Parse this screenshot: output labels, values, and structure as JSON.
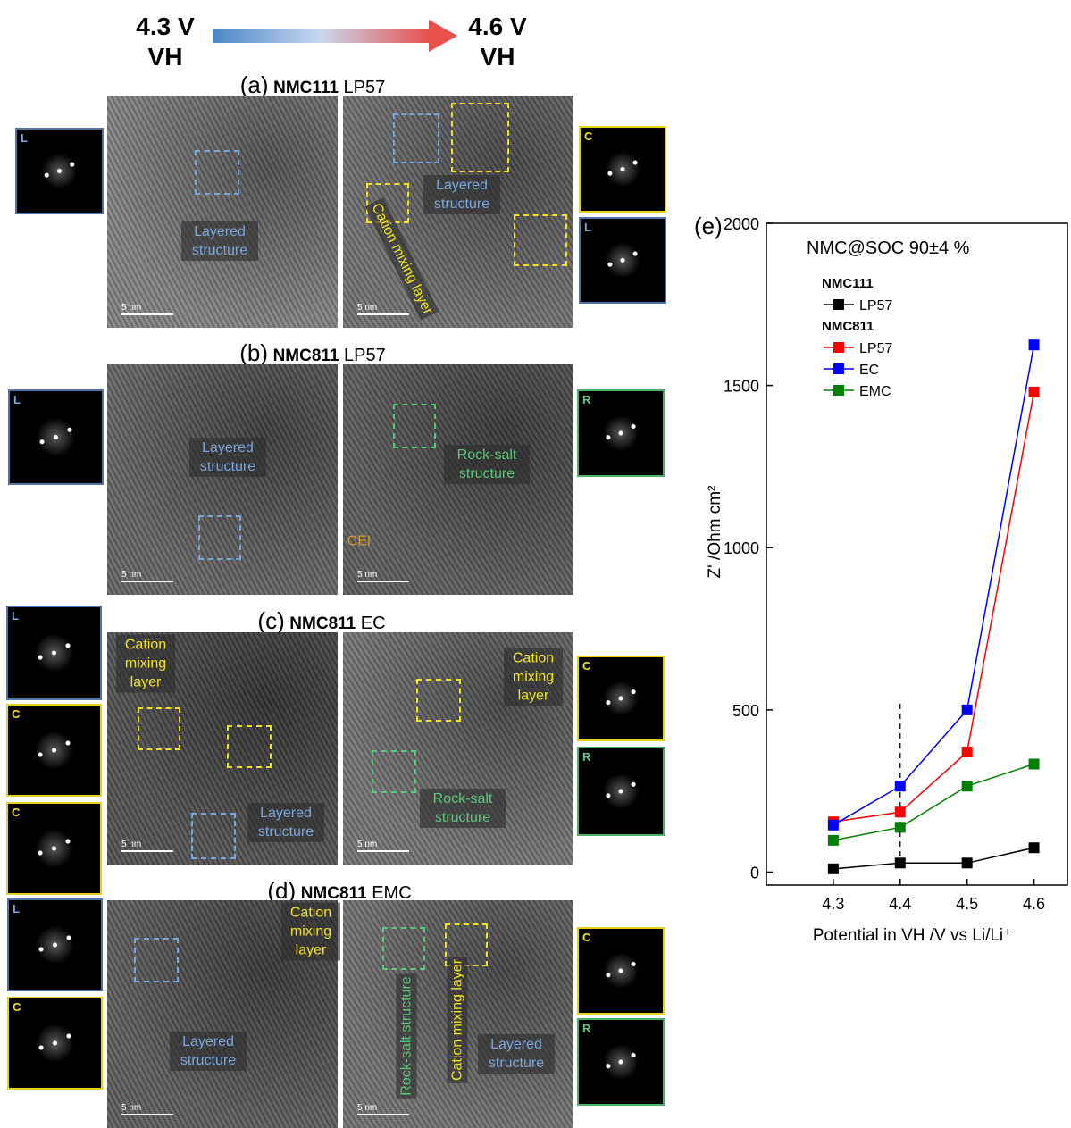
{
  "header": {
    "start_voltage": "4.3 V",
    "start_label": "VH",
    "end_voltage": "4.6 V",
    "end_label": "VH"
  },
  "panels": [
    {
      "label": "(a)",
      "material": "NMC111",
      "electrolyte": "LP57",
      "left_image": {
        "annotations": [
          "Layered structure"
        ],
        "scale_bar": "5 nm"
      },
      "right_image": {
        "annotations": [
          "Layered structure",
          "Cation mixing layer"
        ],
        "scale_bar": "5 nm"
      },
      "left_insets": [
        "L"
      ],
      "right_insets": [
        "C",
        "L"
      ]
    },
    {
      "label": "(b)",
      "material": "NMC811",
      "electrolyte": "LP57",
      "left_image": {
        "annotations": [
          "Layered structure"
        ],
        "scale_bar": "5 nm"
      },
      "right_image": {
        "annotations": [
          "Rock-salt structure",
          "CEI"
        ],
        "scale_bar": "5 nm"
      },
      "left_insets": [
        "L"
      ],
      "right_insets": [
        "R"
      ]
    },
    {
      "label": "(c)",
      "material": "NMC811",
      "electrolyte": "EC",
      "left_image": {
        "annotations": [
          "Cation mixing layer",
          "Layered structure"
        ],
        "scale_bar": "5 nm"
      },
      "right_image": {
        "annotations": [
          "Cation mixing layer",
          "Rock-salt structure"
        ],
        "scale_bar": "5 nm"
      },
      "left_insets": [
        "L",
        "C",
        "C"
      ],
      "right_insets": [
        "C",
        "R"
      ]
    },
    {
      "label": "(d)",
      "material": "NMC811",
      "electrolyte": "EMC",
      "left_image": {
        "annotations": [
          "Cation mixing layer",
          "Layered structure"
        ],
        "scale_bar": "5 nm"
      },
      "right_image": {
        "annotations": [
          "Rock-salt structure",
          "Cation mixing layer",
          "Layered structure"
        ],
        "scale_bar": "5 nm"
      },
      "left_insets": [
        "L",
        "C"
      ],
      "right_insets": [
        "C",
        "R"
      ]
    }
  ],
  "chart_data": {
    "type": "line",
    "panel_label": "(e)",
    "title": "NMC@SOC 90±4 %",
    "xlabel": "Potential in VH /V vs Li/Li⁺",
    "ylabel": "Z' /Ohm cm²",
    "x": [
      4.3,
      4.4,
      4.5,
      4.6
    ],
    "legend_groups": [
      "NMC111",
      "NMC811"
    ],
    "series": [
      {
        "name": "LP57",
        "color": "#000000",
        "values": [
          10,
          28,
          28,
          75
        ]
      },
      {
        "name": "LP57",
        "color": "#ff0000",
        "values": [
          155,
          185,
          370,
          1480
        ]
      },
      {
        "name": "EC",
        "color": "#0000ff",
        "values": [
          145,
          265,
          500,
          1625
        ]
      },
      {
        "name": "EMC",
        "color": "#008000",
        "values": [
          98,
          138,
          265,
          333
        ]
      }
    ],
    "reference_line_x": 4.4,
    "xlim": [
      4.2,
      4.65
    ],
    "ylim": [
      -40,
      2000
    ],
    "xticks": [
      4.3,
      4.4,
      4.5,
      4.6
    ],
    "yticks": [
      0,
      500,
      1000,
      1500,
      2000
    ]
  }
}
